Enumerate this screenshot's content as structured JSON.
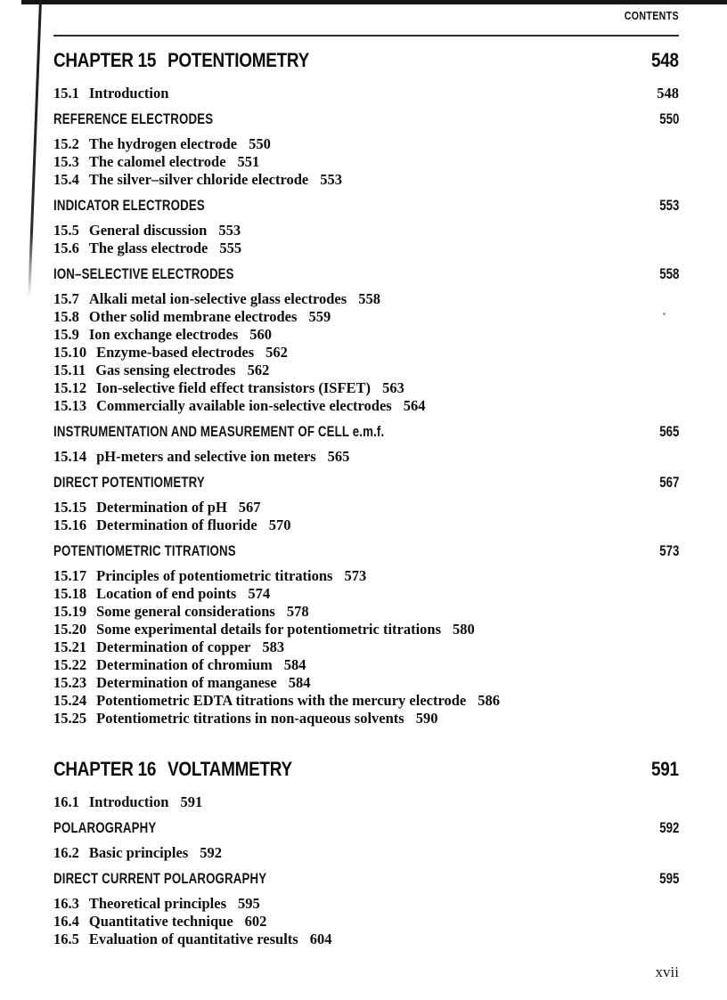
{
  "header": {
    "label": "CONTENTS"
  },
  "footer": {
    "page_number": "xvii"
  },
  "chapters": [
    {
      "label": "CHAPTER 15",
      "title": "POTENTIOMETRY",
      "page": "548",
      "entries": [
        {
          "kind": "item",
          "num": "15.1",
          "title": "Introduction",
          "page": "548",
          "page_position": "right"
        },
        {
          "kind": "section",
          "title": "REFERENCE ELECTRODES",
          "page": "550"
        },
        {
          "kind": "item",
          "num": "15.2",
          "title": "The hydrogen electrode",
          "page": "550",
          "page_position": "inline"
        },
        {
          "kind": "item",
          "num": "15.3",
          "title": "The calomel electrode",
          "page": "551",
          "page_position": "inline"
        },
        {
          "kind": "item",
          "num": "15.4",
          "title": "The silver–silver chloride electrode",
          "page": "553",
          "page_position": "inline"
        },
        {
          "kind": "section",
          "title": "INDICATOR ELECTRODES",
          "page": "553"
        },
        {
          "kind": "item",
          "num": "15.5",
          "title": "General discussion",
          "page": "553",
          "page_position": "inline"
        },
        {
          "kind": "item",
          "num": "15.6",
          "title": "The glass electrode",
          "page": "555",
          "page_position": "inline"
        },
        {
          "kind": "section",
          "title": "ION–SELECTIVE ELECTRODES",
          "page": "558"
        },
        {
          "kind": "item",
          "num": "15.7",
          "title": "Alkali metal ion-selective glass electrodes",
          "page": "558",
          "page_position": "inline"
        },
        {
          "kind": "item",
          "num": "15.8",
          "title": "Other solid membrane electrodes",
          "page": "559",
          "page_position": "inline"
        },
        {
          "kind": "item",
          "num": "15.9",
          "title": "Ion exchange electrodes",
          "page": "560",
          "page_position": "inline"
        },
        {
          "kind": "item",
          "num": "15.10",
          "title": "Enzyme-based electrodes",
          "page": "562",
          "page_position": "inline"
        },
        {
          "kind": "item",
          "num": "15.11",
          "title": "Gas sensing electrodes",
          "page": "562",
          "page_position": "inline"
        },
        {
          "kind": "item",
          "num": "15.12",
          "title": "Ion-selective field effect transistors (ISFET)",
          "page": "563",
          "page_position": "inline"
        },
        {
          "kind": "item",
          "num": "15.13",
          "title": "Commercially available ion-selective electrodes",
          "page": "564",
          "page_position": "inline"
        },
        {
          "kind": "section",
          "title": "INSTRUMENTATION AND MEASUREMENT OF CELL e.m.f.",
          "page": "565"
        },
        {
          "kind": "item",
          "num": "15.14",
          "title": "pH-meters and selective ion meters",
          "page": "565",
          "page_position": "inline"
        },
        {
          "kind": "section",
          "title": "DIRECT POTENTIOMETRY",
          "page": "567"
        },
        {
          "kind": "item",
          "num": "15.15",
          "title": "Determination of pH",
          "page": "567",
          "page_position": "inline"
        },
        {
          "kind": "item",
          "num": "15.16",
          "title": "Determination of fluoride",
          "page": "570",
          "page_position": "inline"
        },
        {
          "kind": "section",
          "title": "POTENTIOMETRIC TITRATIONS",
          "page": "573"
        },
        {
          "kind": "item",
          "num": "15.17",
          "title": "Principles of potentiometric titrations",
          "page": "573",
          "page_position": "inline"
        },
        {
          "kind": "item",
          "num": "15.18",
          "title": "Location of end points",
          "page": "574",
          "page_position": "inline"
        },
        {
          "kind": "item",
          "num": "15.19",
          "title": "Some general considerations",
          "page": "578",
          "page_position": "inline"
        },
        {
          "kind": "item",
          "num": "15.20",
          "title": "Some experimental details for potentiometric titrations",
          "page": "580",
          "page_position": "inline"
        },
        {
          "kind": "item",
          "num": "15.21",
          "title": "Determination of copper",
          "page": "583",
          "page_position": "inline"
        },
        {
          "kind": "item",
          "num": "15.22",
          "title": "Determination of chromium",
          "page": "584",
          "page_position": "inline"
        },
        {
          "kind": "item",
          "num": "15.23",
          "title": "Determination of manganese",
          "page": "584",
          "page_position": "inline"
        },
        {
          "kind": "item",
          "num": "15.24",
          "title": "Potentiometric EDTA titrations with the mercury electrode",
          "page": "586",
          "page_position": "inline"
        },
        {
          "kind": "item",
          "num": "15.25",
          "title": "Potentiometric titrations in non-aqueous solvents",
          "page": "590",
          "page_position": "inline"
        }
      ]
    },
    {
      "label": "CHAPTER 16",
      "title": "VOLTAMMETRY",
      "page": "591",
      "entries": [
        {
          "kind": "item",
          "num": "16.1",
          "title": "Introduction",
          "page": "591",
          "page_position": "inline"
        },
        {
          "kind": "section",
          "title": "POLAROGRAPHY",
          "page": "592"
        },
        {
          "kind": "item",
          "num": "16.2",
          "title": "Basic principles",
          "page": "592",
          "page_position": "inline"
        },
        {
          "kind": "section",
          "title": "DIRECT CURRENT POLAROGRAPHY",
          "page": "595"
        },
        {
          "kind": "item",
          "num": "16.3",
          "title": "Theoretical principles",
          "page": "595",
          "page_position": "inline"
        },
        {
          "kind": "item",
          "num": "16.4",
          "title": "Quantitative technique",
          "page": "602",
          "page_position": "inline"
        },
        {
          "kind": "item",
          "num": "16.5",
          "title": "Evaluation of quantitative results",
          "page": "604",
          "page_position": "inline"
        }
      ]
    }
  ]
}
